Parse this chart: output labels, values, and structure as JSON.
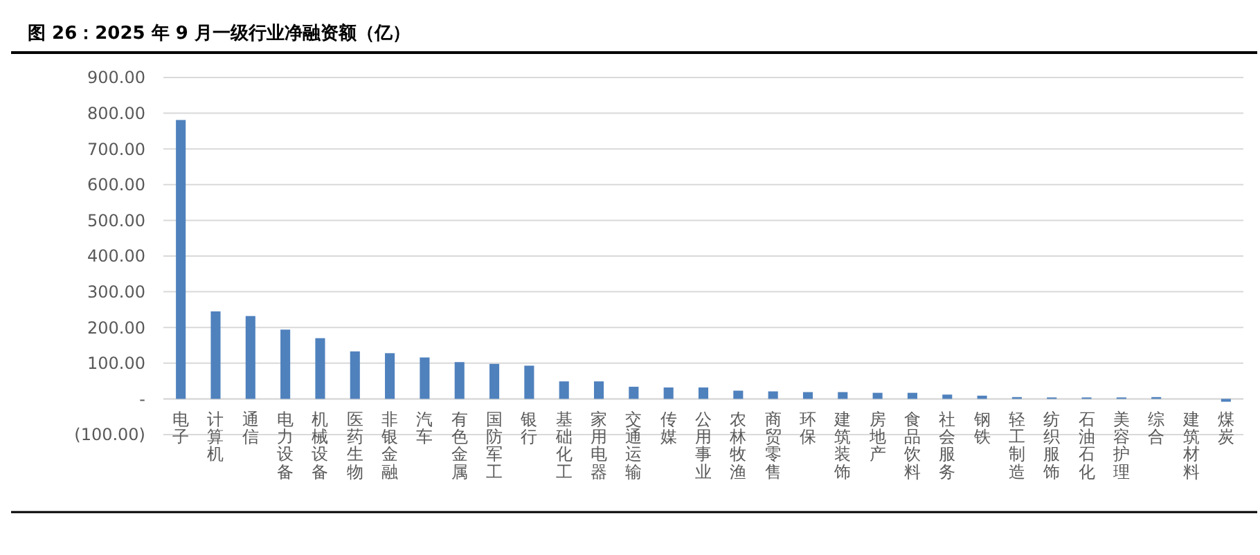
{
  "chart_data": {
    "type": "bar",
    "title": "图 26：2025 年 9 月一级行业净融资额（亿）",
    "categories": [
      "电子",
      "计算机",
      "通信",
      "电力设备",
      "机械设备",
      "医药生物",
      "非银金融",
      "汽车",
      "有色金属",
      "国防军工",
      "银行",
      "基础化工",
      "家用电器",
      "交通运输",
      "传媒",
      "公用事业",
      "农林牧渔",
      "商贸零售",
      "环保",
      "建筑装饰",
      "房地产",
      "食品饮料",
      "社会服务",
      "钢铁",
      "轻工制造",
      "纺织服饰",
      "石油石化",
      "美容护理",
      "综合",
      "建筑材料",
      "煤炭"
    ],
    "values": [
      781,
      245,
      232,
      194,
      170,
      133,
      128,
      116,
      103,
      98,
      93,
      49,
      49,
      34,
      32,
      32,
      23,
      21,
      19,
      19,
      17,
      17,
      12,
      9,
      5,
      4,
      4,
      4,
      5,
      0,
      -8
    ],
    "color": "#4f81bd",
    "ylim": [
      -100,
      900
    ],
    "yticks": [
      {
        "value": -100,
        "label": "(100.00)"
      },
      {
        "value": 0,
        "label": "-"
      },
      {
        "value": 100,
        "label": "100.00"
      },
      {
        "value": 200,
        "label": "200.00"
      },
      {
        "value": 300,
        "label": "300.00"
      },
      {
        "value": 400,
        "label": "400.00"
      },
      {
        "value": 500,
        "label": "500.00"
      },
      {
        "value": 600,
        "label": "600.00"
      },
      {
        "value": 700,
        "label": "700.00"
      },
      {
        "value": 800,
        "label": "800.00"
      },
      {
        "value": 900,
        "label": "900.00"
      }
    ],
    "grid": "y"
  }
}
